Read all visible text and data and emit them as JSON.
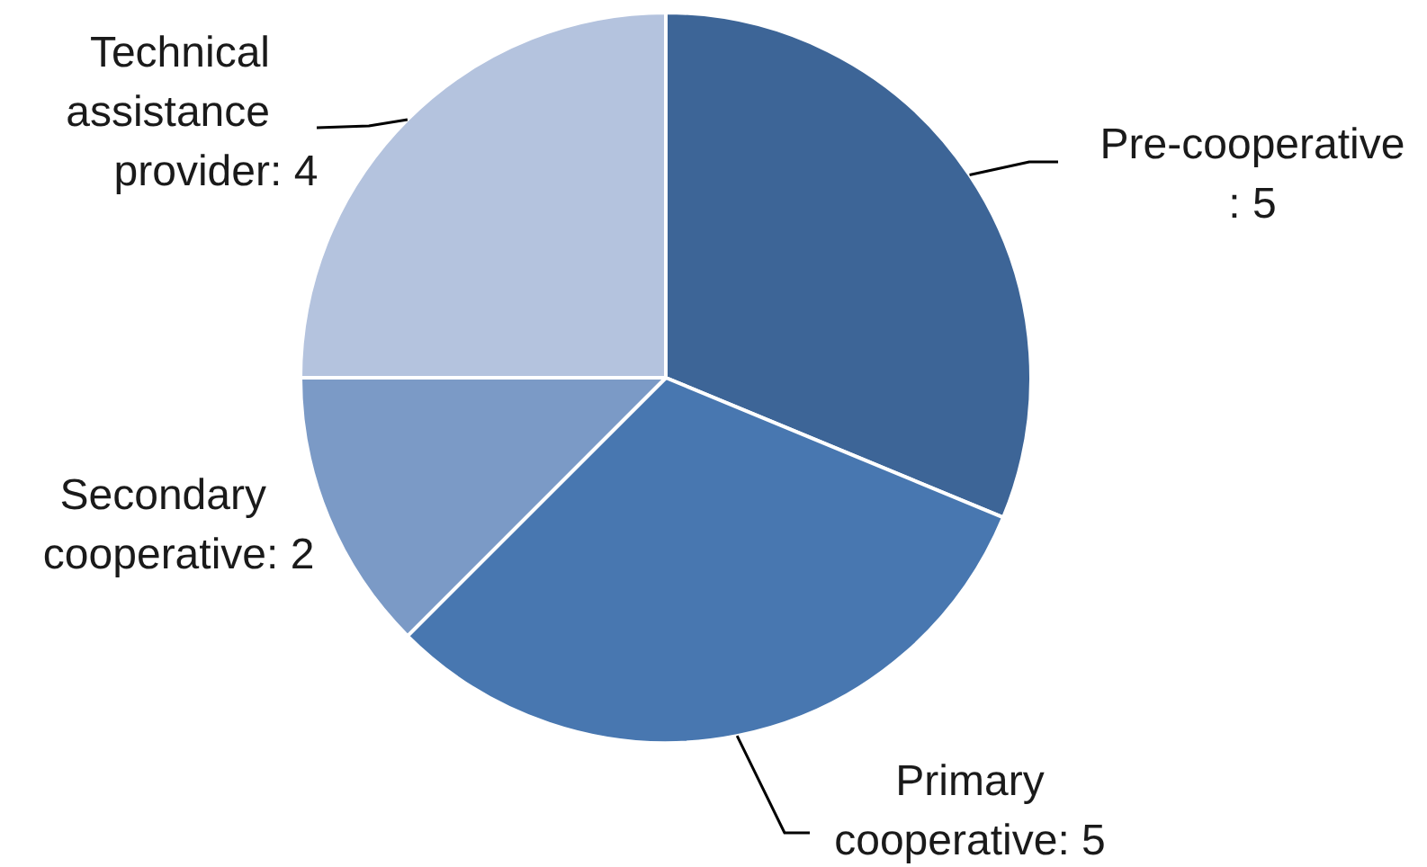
{
  "chart_data": {
    "type": "pie",
    "categories": [
      "Pre-cooperative",
      "Primary cooperative",
      "Secondary cooperative",
      "Technical assistance provider"
    ],
    "values": [
      5,
      5,
      2,
      4
    ],
    "value_labels": [
      ": 5",
      ": 5",
      ": 2",
      ": 4"
    ],
    "colors": [
      "#3d6597",
      "#4877b0",
      "#7b9ac6",
      "#b4c3de"
    ],
    "data_labels": true
  }
}
